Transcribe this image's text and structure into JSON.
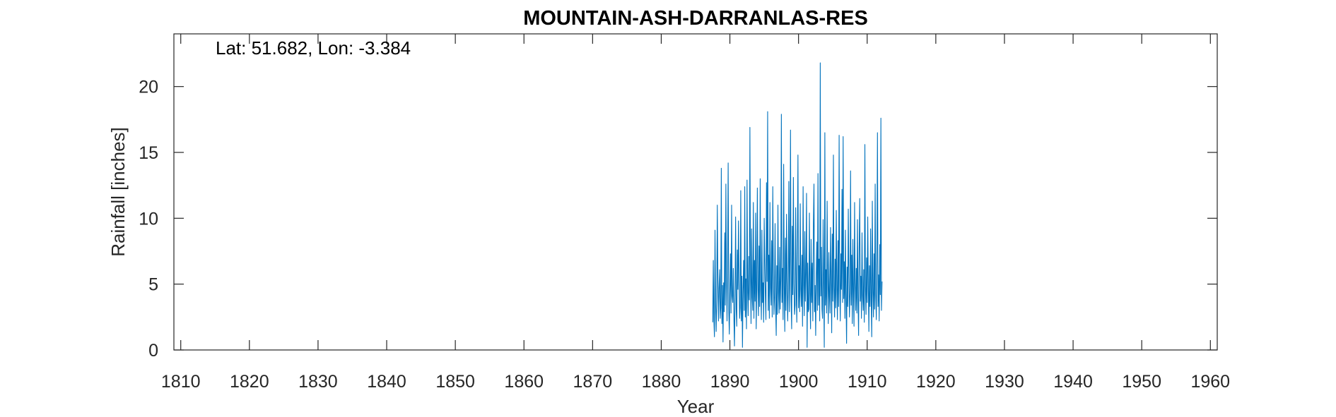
{
  "chart_data": {
    "type": "line",
    "title": "MOUNTAIN-ASH-DARRANLAS-RES",
    "annotation": "Lat: 51.682, Lon: -3.384",
    "xlabel": "Year",
    "ylabel": "Rainfall [inches]",
    "xlim": [
      1809,
      1961
    ],
    "ylim": [
      0,
      24
    ],
    "xticks": [
      1810,
      1820,
      1830,
      1840,
      1850,
      1860,
      1870,
      1880,
      1890,
      1900,
      1910,
      1920,
      1930,
      1940,
      1950,
      1960
    ],
    "yticks": [
      0,
      5,
      10,
      15,
      20
    ],
    "grid": false,
    "series_color": "#0072BD",
    "series": [
      {
        "x_start": 1887.5,
        "x_step": 0.08333,
        "values": [
          2.1,
          6.8,
          2.3,
          1.0,
          9.1,
          3.6,
          1.4,
          3.8,
          11.0,
          5.3,
          2.2,
          4.7,
          6.1,
          2.4,
          3.2,
          13.8,
          2.0,
          4.9,
          0.6,
          5.1,
          2.9,
          8.9,
          3.4,
          12.6,
          5.8,
          2.2,
          6.4,
          14.2,
          3.1,
          1.2,
          4.5,
          7.3,
          2.8,
          11.0,
          4.1,
          3.6,
          6.2,
          2.5,
          0.3,
          4.3,
          10.1,
          3.1,
          1.8,
          7.6,
          4.6,
          9.8,
          5.1,
          2.4,
          3.2,
          12.1,
          2.2,
          5.6,
          0.2,
          4.4,
          6.8,
          3.0,
          12.4,
          2.5,
          5.4,
          1.6,
          12.9,
          4.4,
          2.6,
          7.1,
          3.8,
          16.9,
          5.6,
          2.0,
          9.2,
          4.0,
          3.0,
          11.2,
          2.4,
          6.8,
          3.7,
          10.4,
          1.6,
          5.0,
          12.3,
          4.6,
          2.6,
          7.9,
          3.3,
          13.0,
          4.5,
          2.3,
          9.1,
          3.6,
          5.1,
          2.1,
          10.0,
          6.6,
          4.1,
          2.3,
          12.7,
          5.2,
          18.1,
          3.0,
          7.2,
          2.4,
          11.2,
          4.7,
          3.4,
          8.3,
          2.5,
          12.4,
          6.1,
          2.7,
          4.0,
          9.6,
          3.2,
          1.1,
          6.4,
          2.7,
          11.0,
          4.3,
          2.8,
          7.8,
          3.1,
          5.4,
          17.9,
          3.6,
          6.2,
          2.3,
          14.1,
          4.9,
          1.4,
          8.5,
          3.0,
          10.3,
          5.2,
          2.2,
          4.6,
          12.8,
          2.9,
          6.7,
          16.7,
          3.8,
          1.6,
          9.4,
          4.2,
          13.1,
          5.0,
          2.7,
          3.4,
          10.8,
          4.4,
          2.1,
          8.0,
          14.8,
          3.2,
          6.4,
          2.9,
          11.1,
          4.6,
          3.3,
          7.2,
          1.8,
          12.4,
          4.9,
          2.6,
          9.0,
          3.7,
          5.8,
          11.9,
          0.2,
          6.6,
          2.9,
          3.1,
          10.4,
          4.3,
          1.6,
          8.4,
          3.6,
          6.6,
          2.2,
          9.6,
          12.6,
          2.9,
          4.9,
          1.1,
          5.6,
          8.2,
          3.0,
          13.4,
          3.4,
          6.9,
          2.2,
          21.8,
          4.1,
          7.8,
          3.1,
          2.4,
          9.9,
          4.8,
          0.2,
          16.5,
          3.4,
          6.1,
          2.8,
          11.3,
          5.1,
          2.0,
          7.4,
          4.1,
          2.8,
          9.3,
          5.4,
          1.3,
          8.8,
          3.7,
          14.8,
          4.8,
          2.5,
          6.9,
          3.2,
          10.6,
          4.6,
          2.3,
          8.3,
          3.3,
          16.3,
          5.2,
          2.2,
          7.3,
          4.6,
          12.2,
          3.6,
          16.2,
          3.9,
          6.7,
          2.4,
          9.1,
          4.1,
          0.5,
          6.3,
          3.3,
          10.7,
          5.7,
          2.5,
          4.3,
          13.6,
          3.4,
          7.2,
          2.0,
          8.4,
          4.4,
          1.8,
          11.2,
          5.1,
          3.0,
          6.2,
          2.8,
          9.9,
          4.0,
          1.1,
          7.7,
          11.5,
          3.7,
          5.6,
          2.4,
          8.9,
          4.2,
          3.0,
          6.1,
          2.1,
          15.6,
          4.8,
          2.7,
          7.0,
          3.6,
          10.1,
          5.0,
          1.4,
          6.4,
          3.3,
          9.2,
          3.8,
          1.0,
          11.3,
          4.4,
          2.5,
          7.3,
          3.1,
          12.6,
          4.2,
          2.3,
          6.7,
          16.5,
          3.3,
          5.7,
          2.2,
          8.0,
          4.2,
          17.6,
          3.0,
          5.2
        ]
      }
    ]
  }
}
